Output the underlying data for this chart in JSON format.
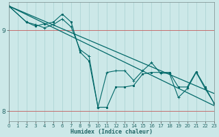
{
  "xlabel": "Humidex (Indice chaleur)",
  "bg_color": "#cce8e8",
  "line_color": "#006868",
  "grid_color": "#a8d0d0",
  "xlim": [
    0,
    23
  ],
  "ylim": [
    7.88,
    9.35
  ],
  "yticks": [
    8,
    9
  ],
  "xticks": [
    0,
    1,
    2,
    3,
    4,
    5,
    6,
    7,
    8,
    9,
    10,
    11,
    12,
    13,
    14,
    15,
    16,
    17,
    18,
    19,
    20,
    21,
    22,
    23
  ],
  "lines": [
    {
      "x": [
        0,
        23
      ],
      "y": [
        9.3,
        8.07
      ],
      "marker": null,
      "lw": 0.9
    },
    {
      "x": [
        0,
        23
      ],
      "y": [
        9.3,
        8.22
      ],
      "marker": null,
      "lw": 0.9
    },
    {
      "x": [
        0,
        2,
        3,
        4,
        5,
        6,
        7,
        8,
        9,
        10,
        11,
        12,
        13,
        14,
        15,
        16,
        17,
        18,
        19,
        20,
        21,
        22,
        23
      ],
      "y": [
        9.3,
        9.1,
        9.05,
        9.08,
        9.1,
        9.2,
        9.1,
        8.73,
        8.62,
        8.05,
        8.05,
        8.3,
        8.3,
        8.32,
        8.46,
        8.48,
        8.48,
        8.48,
        8.3,
        8.3,
        8.49,
        8.3,
        8.1
      ],
      "marker": "s",
      "markersize": 1.8,
      "lw": 0.8
    },
    {
      "x": [
        0,
        2,
        3,
        4,
        5,
        6,
        7,
        8,
        9,
        10,
        11,
        12,
        13,
        14,
        15,
        16,
        17,
        18,
        19,
        20,
        21,
        22,
        23
      ],
      "y": [
        9.3,
        9.1,
        9.07,
        9.03,
        9.07,
        9.14,
        9.04,
        8.76,
        8.68,
        8.05,
        8.48,
        8.5,
        8.5,
        8.38,
        8.5,
        8.6,
        8.47,
        8.47,
        8.17,
        8.28,
        8.48,
        8.28,
        8.1
      ],
      "marker": "+",
      "markersize": 2.5,
      "lw": 0.8
    }
  ]
}
